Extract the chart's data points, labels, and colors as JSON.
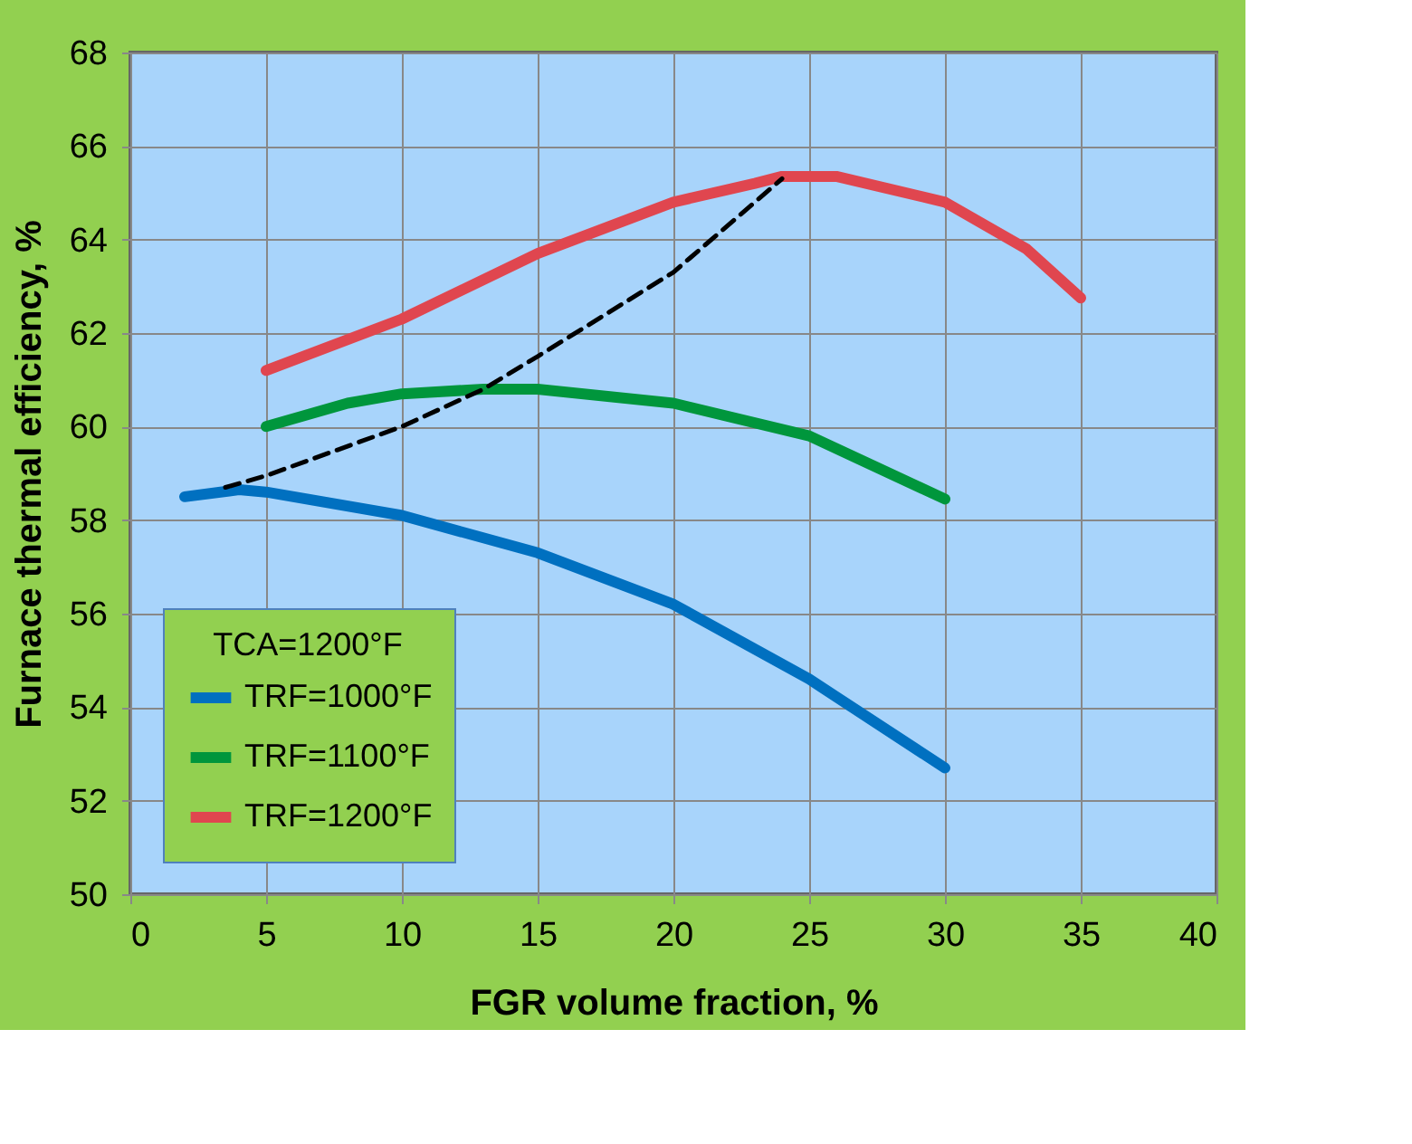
{
  "chart_data": {
    "type": "line",
    "xlabel": "FGR volume fraction, %",
    "ylabel": "Furnace thermal efficiency, %",
    "legend_title": "TCA=1200°F",
    "legend": "bottom left",
    "grid": true,
    "marker": "none",
    "xlim": [
      0,
      40
    ],
    "xticks": [
      0,
      5,
      10,
      15,
      20,
      25,
      30,
      35,
      40
    ],
    "ylim": [
      50,
      68
    ],
    "yticks": [
      50,
      52,
      54,
      56,
      58,
      60,
      62,
      64,
      66,
      68
    ],
    "series": [
      {
        "name": "TRF=1000°F",
        "color": "#0070c0",
        "x": [
          2,
          4,
          5,
          10,
          15,
          20,
          25,
          30
        ],
        "values": [
          58.5,
          58.65,
          58.6,
          58.1,
          57.3,
          56.2,
          54.6,
          52.7
        ]
      },
      {
        "name": "TRF=1100°F",
        "color": "#00963c",
        "x": [
          5,
          8,
          10,
          13,
          15,
          20,
          25,
          30
        ],
        "values": [
          60.0,
          60.5,
          60.7,
          60.8,
          60.8,
          60.5,
          59.8,
          58.45
        ]
      },
      {
        "name": "TRF=1200°F",
        "color": "#e0464f",
        "x": [
          5,
          10,
          15,
          20,
          23,
          24,
          26,
          30,
          33,
          35
        ],
        "values": [
          61.2,
          62.3,
          63.7,
          64.8,
          65.2,
          65.35,
          65.35,
          64.8,
          63.8,
          62.75
        ]
      },
      {
        "color": "#000000",
        "line_style": "dashed",
        "x": [
          3.5,
          5,
          10,
          13,
          15,
          20,
          24
        ],
        "values": [
          58.7,
          58.95,
          60.0,
          60.8,
          61.5,
          63.3,
          65.3
        ]
      }
    ]
  }
}
